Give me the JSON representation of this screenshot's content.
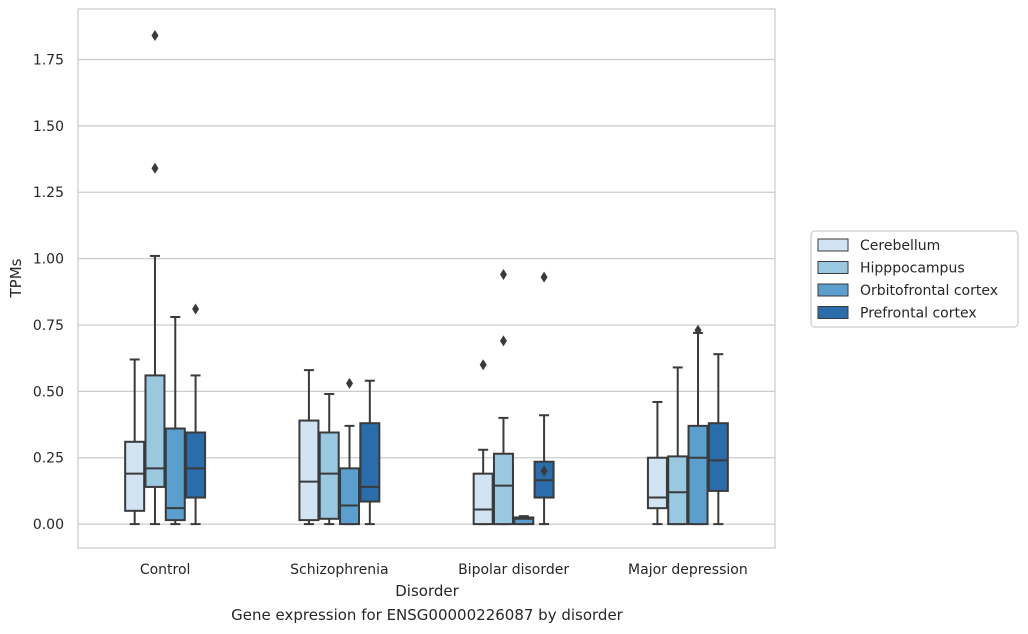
{
  "caption": "Gene expression for ENSG00000226087 by disorder",
  "chart_data": {
    "type": "box",
    "title": "",
    "xlabel": "Disorder",
    "ylabel": "TPMs",
    "ylim": [
      -0.09,
      1.94
    ],
    "yticks": [
      0.0,
      0.25,
      0.5,
      0.75,
      1.0,
      1.25,
      1.5,
      1.75
    ],
    "ytick_labels": [
      "0.00",
      "0.25",
      "0.50",
      "0.75",
      "1.00",
      "1.25",
      "1.50",
      "1.75"
    ],
    "grid": "horizontal",
    "legend_position": "right",
    "categories": [
      "Control",
      "Schizophrenia",
      "Bipolar disorder",
      "Major depression"
    ],
    "series": [
      {
        "name": "Cerebellum",
        "color": "#d2e3f3",
        "boxes": [
          {
            "whislo": 0.0,
            "q1": 0.05,
            "med": 0.19,
            "q3": 0.31,
            "whishi": 0.62,
            "fliers": []
          },
          {
            "whislo": 0.0,
            "q1": 0.015,
            "med": 0.16,
            "q3": 0.39,
            "whishi": 0.58,
            "fliers": []
          },
          {
            "whislo": 0.0,
            "q1": 0.0,
            "med": 0.055,
            "q3": 0.19,
            "whishi": 0.28,
            "fliers": [
              0.6
            ]
          },
          {
            "whislo": 0.0,
            "q1": 0.06,
            "med": 0.1,
            "q3": 0.25,
            "whishi": 0.46,
            "fliers": []
          }
        ]
      },
      {
        "name": "Hipppocampus",
        "color": "#9ac8e0",
        "boxes": [
          {
            "whislo": 0.0,
            "q1": 0.14,
            "med": 0.21,
            "q3": 0.56,
            "whishi": 1.01,
            "fliers": [
              1.34,
              1.84
            ]
          },
          {
            "whislo": 0.0,
            "q1": 0.02,
            "med": 0.19,
            "q3": 0.345,
            "whishi": 0.49,
            "fliers": []
          },
          {
            "whislo": 0.0,
            "q1": 0.0,
            "med": 0.145,
            "q3": 0.265,
            "whishi": 0.4,
            "fliers": [
              0.69,
              0.94
            ]
          },
          {
            "whislo": 0.0,
            "q1": 0.0,
            "med": 0.12,
            "q3": 0.255,
            "whishi": 0.59,
            "fliers": []
          }
        ]
      },
      {
        "name": "Orbitofrontal cortex",
        "color": "#5a9fcd",
        "boxes": [
          {
            "whislo": 0.0,
            "q1": 0.015,
            "med": 0.06,
            "q3": 0.36,
            "whishi": 0.78,
            "fliers": []
          },
          {
            "whislo": 0.0,
            "q1": 0.0,
            "med": 0.07,
            "q3": 0.21,
            "whishi": 0.37,
            "fliers": [
              0.53
            ]
          },
          {
            "whislo": 0.0,
            "q1": 0.0,
            "med": 0.02,
            "q3": 0.025,
            "whishi": 0.03,
            "fliers": []
          },
          {
            "whislo": 0.0,
            "q1": 0.0,
            "med": 0.25,
            "q3": 0.37,
            "whishi": 0.72,
            "fliers": [
              0.73
            ]
          }
        ]
      },
      {
        "name": "Prefrontal cortex",
        "color": "#2b6cab",
        "boxes": [
          {
            "whislo": 0.0,
            "q1": 0.1,
            "med": 0.21,
            "q3": 0.345,
            "whishi": 0.56,
            "fliers": [
              0.81
            ]
          },
          {
            "whislo": 0.0,
            "q1": 0.085,
            "med": 0.14,
            "q3": 0.38,
            "whishi": 0.54,
            "fliers": []
          },
          {
            "whislo": 0.0,
            "q1": 0.1,
            "med": 0.165,
            "q3": 0.235,
            "whishi": 0.41,
            "fliers": [
              0.2,
              0.93
            ]
          },
          {
            "whislo": 0.0,
            "q1": 0.125,
            "med": 0.24,
            "q3": 0.38,
            "whishi": 0.64,
            "fliers": []
          }
        ]
      }
    ]
  }
}
